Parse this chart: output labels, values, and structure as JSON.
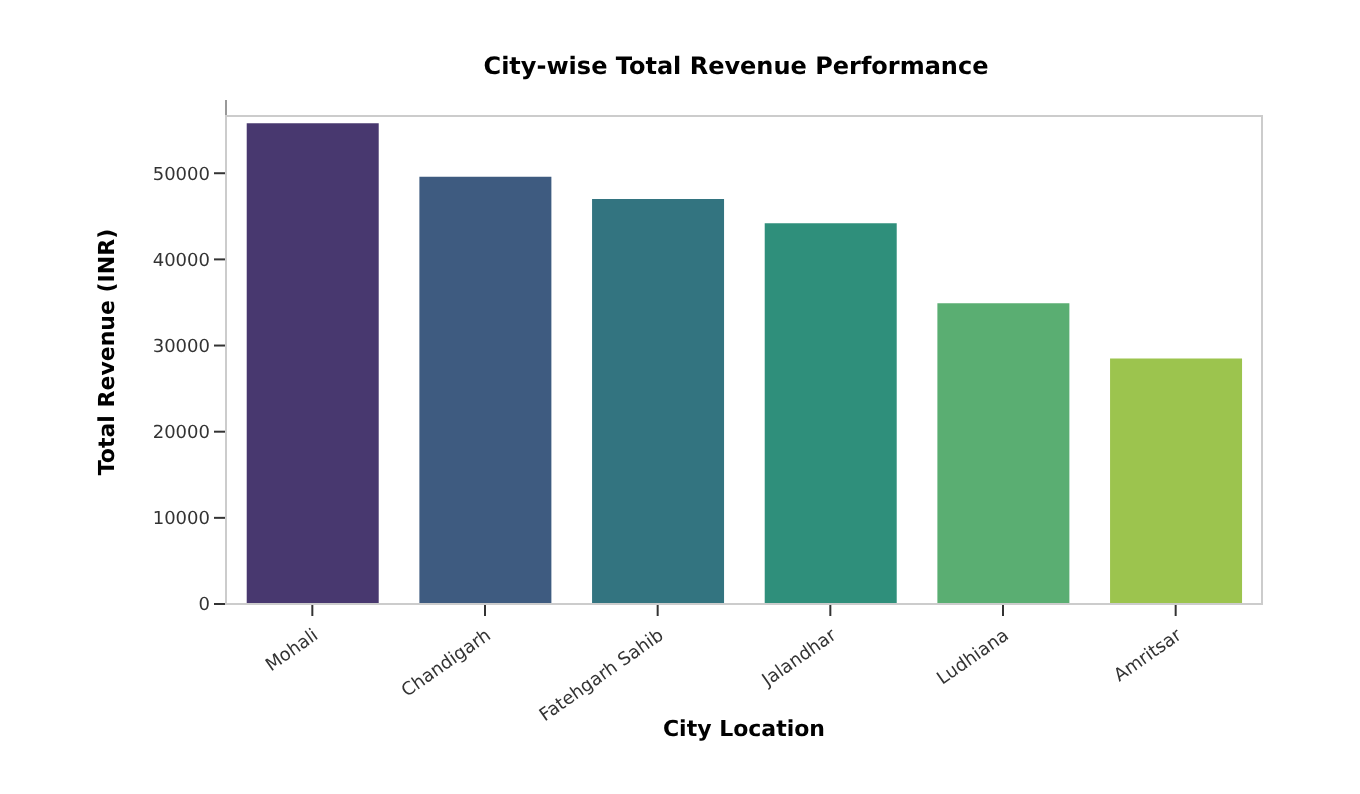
{
  "chart_data": {
    "type": "bar",
    "title": "City-wise Total Revenue Performance",
    "xlabel": "City Location",
    "ylabel": "Total Revenue (INR)",
    "categories": [
      "Mohali",
      "Chandigarh",
      "Fatehgarh Sahib",
      "Jalandhar",
      "Ludhiana",
      "Amritsar"
    ],
    "values": [
      55800,
      49600,
      47000,
      44200,
      34900,
      28500
    ],
    "colors": [
      "#48386f",
      "#3e5b80",
      "#337480",
      "#2f8f7b",
      "#5aae72",
      "#9cc44e"
    ],
    "ylim": [
      0,
      58500
    ],
    "yticks": [
      0,
      10000,
      20000,
      30000,
      40000,
      50000
    ],
    "grid": false
  }
}
